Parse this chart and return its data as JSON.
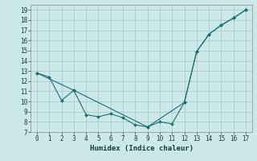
{
  "xlabel": "Humidex (Indice chaleur)",
  "background_color": "#cce8e8",
  "grid_color": "#aacccc",
  "line_color": "#1a7070",
  "xlim": [
    -0.5,
    17.5
  ],
  "ylim": [
    7,
    19.5
  ],
  "xticks": [
    0,
    1,
    2,
    3,
    4,
    5,
    6,
    7,
    8,
    9,
    10,
    11,
    12,
    13,
    14,
    15,
    16,
    17
  ],
  "yticks": [
    7,
    8,
    9,
    10,
    11,
    12,
    13,
    14,
    15,
    16,
    17,
    18,
    19
  ],
  "line1_x": [
    0,
    1,
    2,
    3,
    4,
    5,
    6,
    7,
    8,
    9,
    10,
    11,
    12,
    13,
    14,
    15,
    16,
    17
  ],
  "line1_y": [
    12.8,
    12.4,
    10.1,
    11.1,
    8.7,
    8.5,
    8.8,
    8.4,
    7.7,
    7.5,
    8.0,
    7.8,
    9.9,
    14.9,
    16.6,
    17.5,
    18.2,
    19.0
  ],
  "line2_x": [
    0,
    3,
    9,
    12,
    13,
    14,
    15,
    16,
    17
  ],
  "line2_y": [
    12.8,
    11.1,
    7.5,
    9.9,
    14.9,
    16.6,
    17.5,
    18.2,
    19.0
  ],
  "tick_fontsize": 5.5,
  "xlabel_fontsize": 6.5
}
